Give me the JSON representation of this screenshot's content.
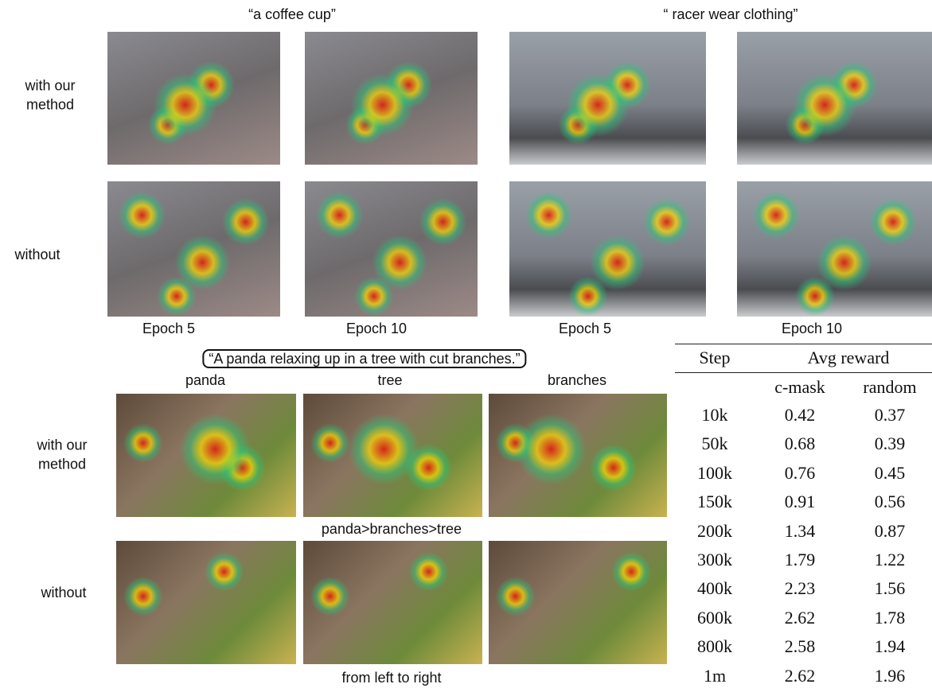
{
  "top": {
    "captions": [
      "“a coffee cup”",
      "“ racer wear clothing”"
    ],
    "row_labels": [
      "with our\nmethod",
      "without"
    ],
    "epochs": [
      "Epoch 5",
      "Epoch 10",
      "Epoch 5",
      "Epoch 10"
    ]
  },
  "bottom": {
    "prompt": "“A panda relaxing up in a tree with cut branches.”",
    "words": [
      "panda",
      "tree",
      "branches"
    ],
    "row_labels": [
      "with our\nmethod",
      "without"
    ],
    "order": "panda>branches>tree",
    "footer": "from left to right"
  },
  "table": {
    "header": [
      "Step",
      "Avg reward"
    ],
    "subheader": [
      "c-mask",
      "random"
    ],
    "rows": [
      [
        "10k",
        "0.42",
        "0.37"
      ],
      [
        "50k",
        "0.68",
        "0.39"
      ],
      [
        "100k",
        "0.76",
        "0.45"
      ],
      [
        "150k",
        "0.91",
        "0.56"
      ],
      [
        "200k",
        "1.34",
        "0.87"
      ],
      [
        "300k",
        "1.79",
        "1.22"
      ],
      [
        "400k",
        "2.23",
        "1.56"
      ],
      [
        "600k",
        "2.62",
        "1.78"
      ],
      [
        "800k",
        "2.58",
        "1.94"
      ],
      [
        "1m",
        "2.62",
        "1.96"
      ]
    ]
  }
}
